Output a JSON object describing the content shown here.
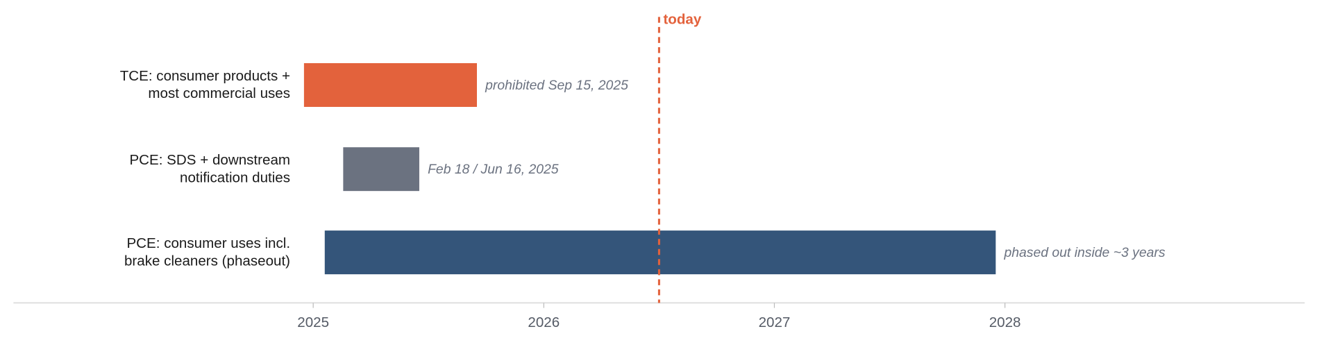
{
  "chart_data": {
    "type": "timeline",
    "categories": [
      [
        "TCE: consumer products +",
        "most commercial uses"
      ],
      [
        "PCE: SDS + downstream",
        "notification duties"
      ],
      [
        "PCE: consumer uses incl.",
        "brake cleaners (phaseout)"
      ]
    ],
    "start": [
      2024.96,
      2025.13,
      2025.05
    ],
    "end": [
      2025.71,
      2025.46,
      2027.96
    ],
    "colors": [
      "#e3623c",
      "#6b7280",
      "#34557a"
    ],
    "annotations": [
      "prohibited Sep 15, 2025",
      "Feb 18 / Jun 16, 2025",
      "phased out inside ~3 years"
    ],
    "today": {
      "label": "today",
      "value": 2026.5,
      "color": "#e3623c"
    },
    "xlim": [
      2023.7,
      2029.3
    ],
    "xticks": [
      2025,
      2026,
      2027,
      2028
    ]
  }
}
